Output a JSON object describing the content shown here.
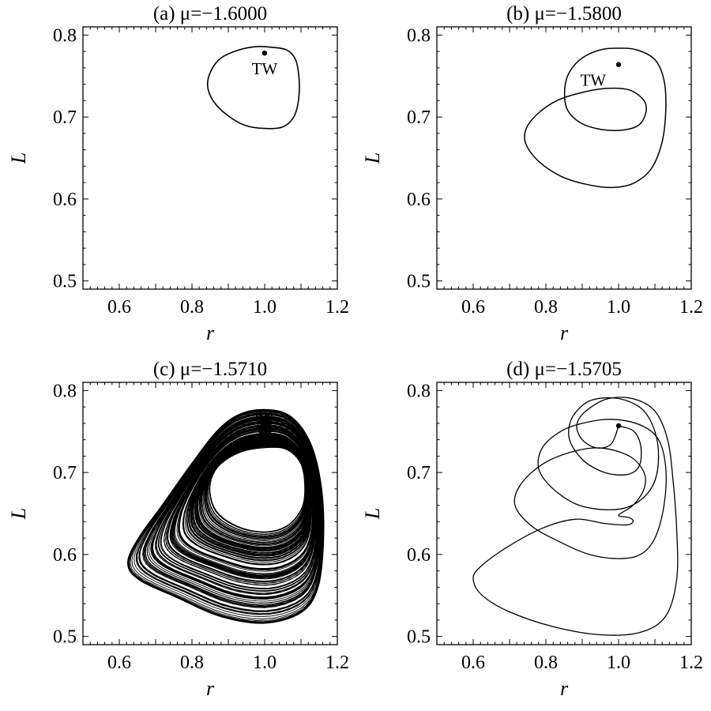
{
  "chart_data": [
    {
      "type": "line",
      "title": "(a) μ=−1.6000",
      "xlabel": "r",
      "ylabel": "L",
      "xlim": [
        0.5,
        1.2
      ],
      "ylim": [
        0.49,
        0.81
      ],
      "xticks": [
        "0.6",
        "0.8",
        "1.0",
        "1.2"
      ],
      "yticks": [
        "0.5",
        "0.6",
        "0.7",
        "0.8"
      ],
      "grid": false,
      "series": [
        {
          "closed": true,
          "points": [
            [
              1.02,
              0.785
            ],
            [
              1.06,
              0.782
            ],
            [
              1.085,
              0.77
            ],
            [
              1.095,
              0.745
            ],
            [
              1.093,
              0.72
            ],
            [
              1.08,
              0.7
            ],
            [
              1.05,
              0.688
            ],
            [
              1.0,
              0.686
            ],
            [
              0.945,
              0.69
            ],
            [
              0.895,
              0.703
            ],
            [
              0.858,
              0.72
            ],
            [
              0.843,
              0.738
            ],
            [
              0.852,
              0.756
            ],
            [
              0.88,
              0.772
            ],
            [
              0.93,
              0.782
            ],
            [
              0.98,
              0.786
            ]
          ]
        }
      ],
      "marker": {
        "x": 1.0,
        "y": 0.778
      },
      "annotation": {
        "text": "TW",
        "x": 1.0,
        "y": 0.762
      }
    },
    {
      "type": "line",
      "title": "(b) μ=−1.5800",
      "xlabel": "r",
      "ylabel": "L",
      "xlim": [
        0.5,
        1.2
      ],
      "ylim": [
        0.49,
        0.81
      ],
      "xticks": [
        "0.6",
        "0.8",
        "1.0",
        "1.2"
      ],
      "yticks": [
        "0.5",
        "0.6",
        "0.7",
        "0.8"
      ],
      "grid": false,
      "series": [
        {
          "closed": true,
          "points": [
            [
              1.0,
              0.784
            ],
            [
              1.05,
              0.782
            ],
            [
              1.1,
              0.77
            ],
            [
              1.125,
              0.745
            ],
            [
              1.13,
              0.71
            ],
            [
              1.12,
              0.67
            ],
            [
              1.09,
              0.637
            ],
            [
              1.04,
              0.619
            ],
            [
              0.98,
              0.614
            ],
            [
              0.91,
              0.618
            ],
            [
              0.84,
              0.628
            ],
            [
              0.78,
              0.646
            ],
            [
              0.745,
              0.667
            ],
            [
              0.745,
              0.685
            ],
            [
              0.775,
              0.703
            ],
            [
              0.83,
              0.72
            ],
            [
              0.9,
              0.73
            ],
            [
              0.97,
              0.735
            ],
            [
              1.03,
              0.733
            ],
            [
              1.07,
              0.72
            ],
            [
              1.075,
              0.705
            ],
            [
              1.055,
              0.69
            ],
            [
              1.01,
              0.684
            ],
            [
              0.95,
              0.685
            ],
            [
              0.895,
              0.693
            ],
            [
              0.858,
              0.71
            ],
            [
              0.852,
              0.735
            ],
            [
              0.865,
              0.755
            ],
            [
              0.9,
              0.772
            ],
            [
              0.95,
              0.782
            ]
          ]
        }
      ],
      "marker": {
        "x": 1.0,
        "y": 0.764
      },
      "annotation": {
        "text": "TW",
        "x": 0.93,
        "y": 0.748
      }
    },
    {
      "type": "line",
      "title": "(c) μ=−1.5710",
      "xlabel": "r",
      "ylabel": "L",
      "xlim": [
        0.5,
        1.2
      ],
      "ylim": [
        0.49,
        0.81
      ],
      "xticks": [
        "0.6",
        "0.8",
        "1.0",
        "1.2"
      ],
      "yticks": [
        "0.5",
        "0.6",
        "0.7",
        "0.8"
      ],
      "grid": false,
      "series": [
        {
          "closed": true,
          "points": [
            [
              1.0,
              0.776
            ],
            [
              1.07,
              0.768
            ],
            [
              1.125,
              0.735
            ],
            [
              1.155,
              0.68
            ],
            [
              1.16,
              0.615
            ],
            [
              1.145,
              0.56
            ],
            [
              1.1,
              0.53
            ],
            [
              1.0,
              0.517
            ],
            [
              0.88,
              0.525
            ],
            [
              0.76,
              0.548
            ],
            [
              0.655,
              0.57
            ],
            [
              0.625,
              0.59
            ],
            [
              0.655,
              0.62
            ],
            [
              0.72,
              0.66
            ],
            [
              0.8,
              0.71
            ],
            [
              0.87,
              0.75
            ],
            [
              0.93,
              0.77
            ]
          ]
        },
        {
          "closed": true,
          "points": [
            [
              1.0,
              0.73
            ],
            [
              1.06,
              0.728
            ],
            [
              1.1,
              0.71
            ],
            [
              1.11,
              0.68
            ],
            [
              1.1,
              0.655
            ],
            [
              1.06,
              0.635
            ],
            [
              1.0,
              0.628
            ],
            [
              0.93,
              0.634
            ],
            [
              0.87,
              0.652
            ],
            [
              0.85,
              0.68
            ],
            [
              0.87,
              0.706
            ],
            [
              0.93,
              0.724
            ]
          ]
        }
      ]
    },
    {
      "type": "line",
      "title": "(d) μ=−1.5705",
      "xlabel": "r",
      "ylabel": "L",
      "xlim": [
        0.5,
        1.2
      ],
      "ylim": [
        0.49,
        0.81
      ],
      "xticks": [
        "0.6",
        "0.8",
        "1.0",
        "1.2"
      ],
      "yticks": [
        "0.5",
        "0.6",
        "0.7",
        "0.8"
      ],
      "grid": false,
      "series": [
        {
          "closed": true,
          "points": [
            [
              1.0,
              0.757
            ],
            [
              1.04,
              0.751
            ],
            [
              1.06,
              0.735
            ],
            [
              1.06,
              0.712
            ],
            [
              1.04,
              0.7
            ],
            [
              1.0,
              0.697
            ],
            [
              0.95,
              0.702
            ],
            [
              0.9,
              0.716
            ],
            [
              0.865,
              0.74
            ],
            [
              0.87,
              0.765
            ],
            [
              0.91,
              0.785
            ],
            [
              0.96,
              0.791
            ],
            [
              1.02,
              0.788
            ],
            [
              1.07,
              0.775
            ],
            [
              1.1,
              0.75
            ],
            [
              1.11,
              0.72
            ],
            [
              1.1,
              0.69
            ],
            [
              1.07,
              0.67
            ],
            [
              1.02,
              0.657
            ],
            [
              0.95,
              0.655
            ],
            [
              0.88,
              0.662
            ],
            [
              0.815,
              0.682
            ],
            [
              0.78,
              0.705
            ],
            [
              0.79,
              0.73
            ],
            [
              0.84,
              0.75
            ],
            [
              0.9,
              0.76
            ],
            [
              0.98,
              0.765
            ],
            [
              1.06,
              0.758
            ],
            [
              1.11,
              0.74
            ],
            [
              1.13,
              0.705
            ],
            [
              1.125,
              0.66
            ],
            [
              1.1,
              0.62
            ],
            [
              1.06,
              0.6
            ],
            [
              1.0,
              0.595
            ],
            [
              0.92,
              0.6
            ],
            [
              0.84,
              0.615
            ],
            [
              0.76,
              0.635
            ],
            [
              0.715,
              0.66
            ],
            [
              0.73,
              0.685
            ],
            [
              0.79,
              0.71
            ],
            [
              0.87,
              0.725
            ],
            [
              0.95,
              0.73
            ],
            [
              1.03,
              0.72
            ],
            [
              1.07,
              0.7
            ],
            [
              1.07,
              0.68
            ],
            [
              1.04,
              0.66
            ],
            [
              1.0,
              0.648
            ],
            [
              1.03,
              0.645
            ],
            [
              1.04,
              0.64
            ],
            [
              1.02,
              0.636
            ],
            [
              0.96,
              0.638
            ],
            [
              0.88,
              0.643
            ],
            [
              0.79,
              0.632
            ],
            [
              0.69,
              0.608
            ],
            [
              0.62,
              0.585
            ],
            [
              0.6,
              0.57
            ],
            [
              0.625,
              0.55
            ],
            [
              0.7,
              0.53
            ],
            [
              0.82,
              0.512
            ],
            [
              0.95,
              0.502
            ],
            [
              1.06,
              0.505
            ],
            [
              1.13,
              0.525
            ],
            [
              1.16,
              0.57
            ],
            [
              1.16,
              0.63
            ],
            [
              1.15,
              0.69
            ],
            [
              1.135,
              0.74
            ],
            [
              1.1,
              0.775
            ],
            [
              1.04,
              0.79
            ],
            [
              0.97,
              0.79
            ],
            [
              0.91,
              0.775
            ],
            [
              0.885,
              0.758
            ],
            [
              0.9,
              0.74
            ],
            [
              0.94,
              0.73
            ],
            [
              0.98,
              0.735
            ],
            [
              1.0,
              0.757
            ]
          ]
        }
      ],
      "marker": {
        "x": 1.0,
        "y": 0.757
      }
    }
  ]
}
